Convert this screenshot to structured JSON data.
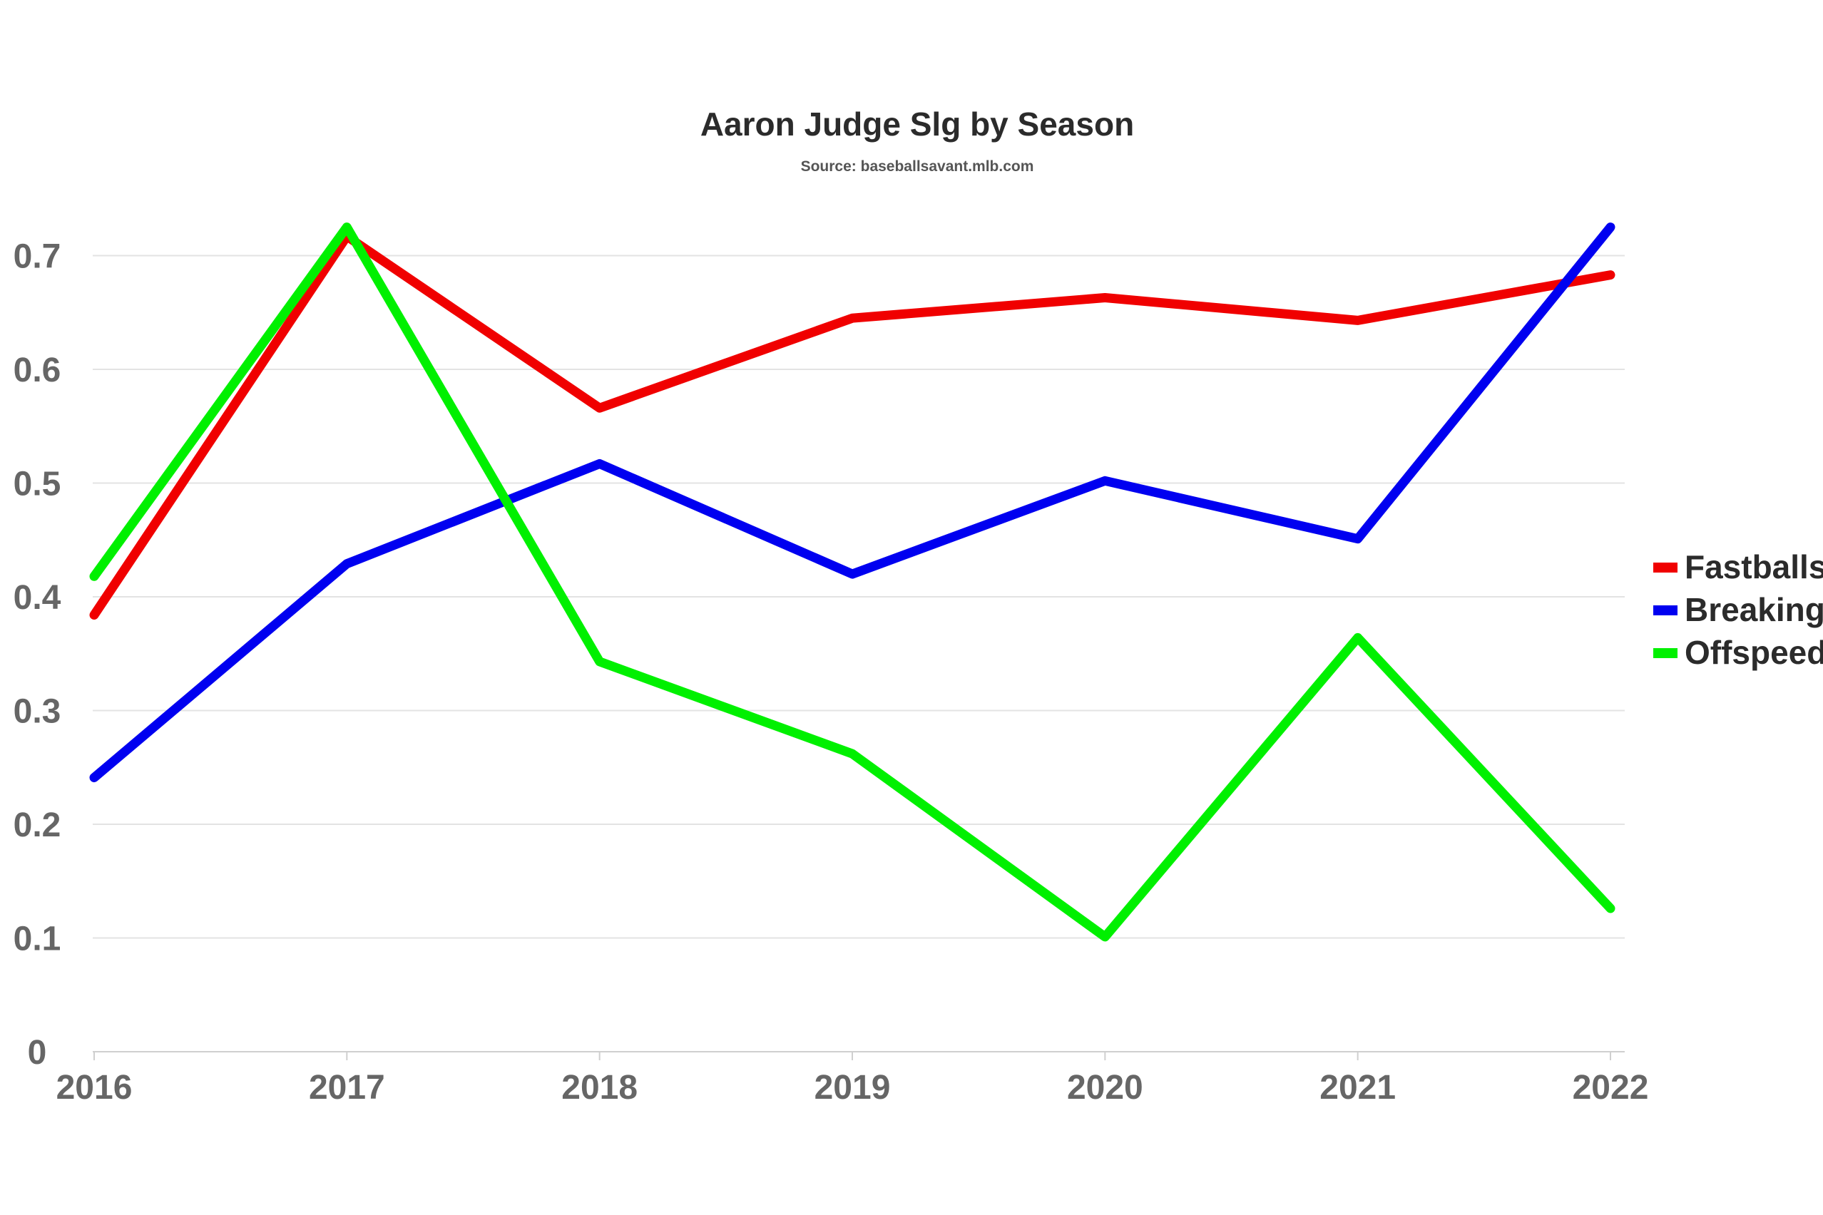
{
  "chart_data": {
    "type": "line",
    "title": "Aaron Judge Slg by Season",
    "subtitle": "Source: baseballsavant.mlb.com",
    "xlabel": "",
    "ylabel": "",
    "x": [
      "2016",
      "2017",
      "2018",
      "2019",
      "2020",
      "2021",
      "2022"
    ],
    "ylim": [
      0,
      0.7
    ],
    "yticks": [
      "0",
      "0.1",
      "0.2",
      "0.3",
      "0.4",
      "0.5",
      "0.6",
      "0.7"
    ],
    "grid": true,
    "legend_position": "right",
    "series": [
      {
        "name": "Fastballs",
        "color": "#f00000",
        "values": [
          0.384,
          0.717,
          0.566,
          0.645,
          0.663,
          0.643,
          0.683
        ]
      },
      {
        "name": "Breaking",
        "color": "#0000f0",
        "values": [
          0.241,
          0.429,
          0.517,
          0.42,
          0.502,
          0.451,
          0.725
        ]
      },
      {
        "name": "Offspeed",
        "color": "#00f000",
        "values": [
          0.418,
          0.725,
          0.343,
          0.262,
          0.101,
          0.364,
          0.126
        ]
      }
    ]
  }
}
